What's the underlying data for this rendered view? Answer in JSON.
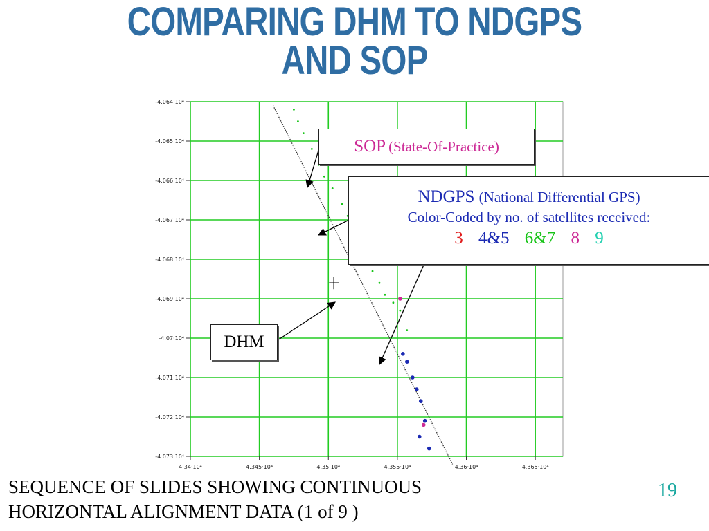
{
  "slide": {
    "title_line1": "COMPARING DHM TO NDGPS",
    "title_line2": "AND SOP",
    "footer_line1": "SEQUENCE OF SLIDES SHOWING CONTINUOUS",
    "footer_line2": "HORIZONTAL ALIGNMENT DATA (1 of 9 )",
    "page_number": "19"
  },
  "callouts": {
    "sop": {
      "label": "SOP",
      "detail": "(State-Of-Practice)"
    },
    "ndgps": {
      "label": "NDGPS",
      "detail": "(National Differential GPS)",
      "line2": "Color-Coded by no. of satellites received:",
      "legend": [
        {
          "text": "3",
          "color": "#e01c1c"
        },
        {
          "text": "4&5",
          "color": "#1b2ab3"
        },
        {
          "text": "6&7",
          "color": "#18c418"
        },
        {
          "text": "8",
          "color": "#cc2a96"
        },
        {
          "text": "9",
          "color": "#22d0b0"
        }
      ]
    },
    "dhm": {
      "label": "DHM"
    }
  },
  "chart_data": {
    "type": "scatter",
    "title": "",
    "xlabel": "",
    "ylabel": "",
    "xlim": [
      43400,
      43670
    ],
    "ylim": [
      -40730,
      -40640
    ],
    "x_tick_labels": [
      "4.34·10⁴",
      "4.345·10⁴",
      "4.35·10⁴",
      "4.355·10⁴",
      "4.36·10⁴",
      "4.365·10⁴"
    ],
    "x_ticks": [
      43400,
      43450,
      43500,
      43550,
      43600,
      43650
    ],
    "y_tick_labels": [
      "-4.064·10⁴",
      "-4.065·10⁴",
      "-4.066·10⁴",
      "-4.067·10⁴",
      "-4.068·10⁴",
      "-4.069·10⁴",
      "-4.07·10⁴",
      "-4.071·10⁴",
      "-4.072·10⁴",
      "-4.073·10⁴"
    ],
    "y_ticks": [
      -40640,
      -40650,
      -40660,
      -40670,
      -40680,
      -40690,
      -40700,
      -40710,
      -40720,
      -40730
    ],
    "grid": true,
    "grid_color": "#22cc22",
    "series": [
      {
        "color": "#18c418",
        "marker": "small",
        "x": [
          43475,
          43478,
          43482,
          43488,
          43493,
          43497,
          43503,
          43510,
          43514,
          43519,
          43522,
          43526,
          43532,
          43537,
          43541,
          43547,
          43552,
          43557
        ],
        "y": [
          -40642,
          -40645,
          -40648,
          -40652,
          -40656,
          -40659,
          -40662,
          -40666,
          -40669,
          -40673,
          -40677,
          -40680,
          -40683,
          -40686,
          -40689,
          -40691,
          -40693,
          -40698
        ]
      },
      {
        "color": "#cc2a96",
        "marker": "large",
        "x": [
          43529,
          43552,
          43569
        ],
        "y": [
          -40662,
          -40690,
          -40722
        ]
      },
      {
        "color": "#1b2ab3",
        "marker": "large",
        "x": [
          43554,
          43557,
          43561,
          43564,
          43567,
          43570,
          43566,
          43573
        ],
        "y": [
          -40704,
          -40706,
          -40710,
          -40713,
          -40716,
          -40721,
          -40725,
          -40728
        ]
      }
    ],
    "reference_line": {
      "name": "DHM",
      "color": "#333333",
      "style": "dotted",
      "x": [
        43460,
        43590
      ],
      "y": [
        -40641,
        -40732
      ]
    },
    "crosshair": {
      "x": 43504,
      "y": -40686
    }
  }
}
